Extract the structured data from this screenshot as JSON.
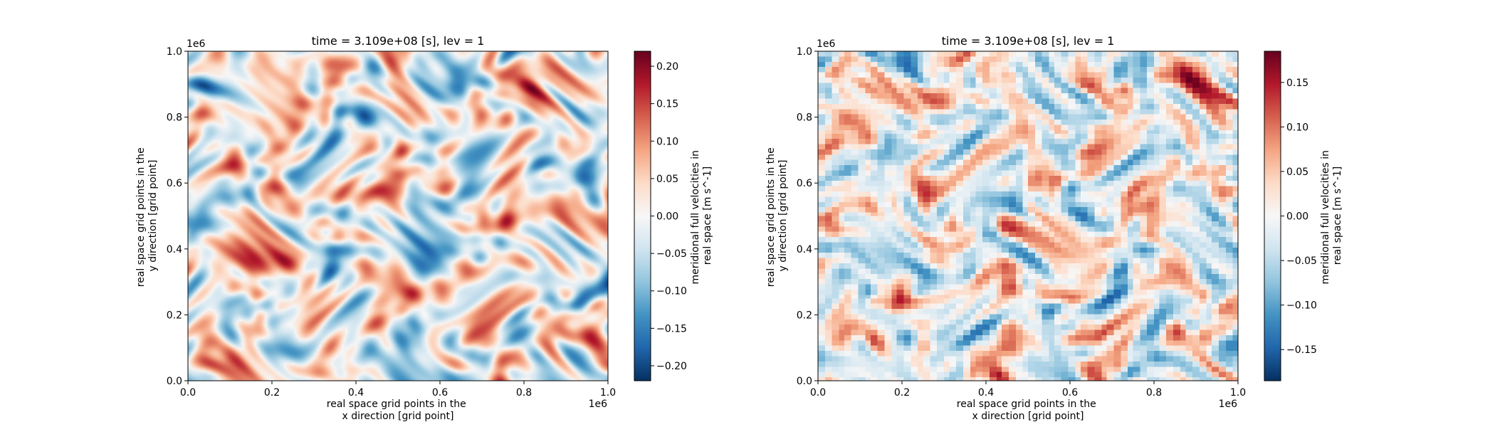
{
  "chart_data": [
    {
      "type": "heatmap",
      "title": "time = 3.109e+08 [s], lev = 1",
      "xlabel": [
        "real space grid points in the",
        "x direction [grid point]"
      ],
      "ylabel": [
        "real space grid points in the",
        "y direction [grid point]"
      ],
      "x_offset": "1e6",
      "y_offset": "1e6",
      "xlim": [
        0.0,
        1.0
      ],
      "ylim": [
        0.0,
        1.0
      ],
      "xticks": [
        "0.0",
        "0.2",
        "0.4",
        "0.6",
        "0.8",
        "1.0"
      ],
      "yticks": [
        "0.0",
        "0.2",
        "0.4",
        "0.6",
        "0.8",
        "1.0"
      ],
      "colormap": "RdBu_r",
      "field_resolution": "fine",
      "colorbar": {
        "label": [
          "meridional full velocities in",
          "real space [m s^-1]"
        ],
        "vmin": -0.22,
        "vmax": 0.22,
        "ticks": [
          -0.2,
          -0.15,
          -0.1,
          -0.05,
          0.0,
          0.05,
          0.1,
          0.15,
          0.2
        ],
        "tick_labels": [
          "−0.20",
          "−0.15",
          "−0.10",
          "−0.05",
          "0.00",
          "0.05",
          "0.10",
          "0.15",
          "0.20"
        ]
      }
    },
    {
      "type": "heatmap",
      "title": "time = 3.109e+08 [s], lev = 1",
      "xlabel": [
        "real space grid points in the",
        "x direction [grid point]"
      ],
      "ylabel": [
        "real space grid points in the",
        "y direction [grid point]"
      ],
      "x_offset": "1e6",
      "y_offset": "1e6",
      "xlim": [
        0.0,
        1.0
      ],
      "ylim": [
        0.0,
        1.0
      ],
      "xticks": [
        "0.0",
        "0.2",
        "0.4",
        "0.6",
        "0.8",
        "1.0"
      ],
      "yticks": [
        "0.0",
        "0.2",
        "0.4",
        "0.6",
        "0.8",
        "1.0"
      ],
      "colormap": "RdBu_r",
      "field_resolution": "coarse",
      "colorbar": {
        "label": [
          "meridional full velocities in",
          "real space [m s^-1]"
        ],
        "vmin": -0.185,
        "vmax": 0.185,
        "ticks": [
          -0.15,
          -0.1,
          -0.05,
          0.0,
          0.05,
          0.1,
          0.15
        ],
        "tick_labels": [
          "−0.15",
          "−0.10",
          "−0.05",
          "0.00",
          "0.05",
          "0.10",
          "0.15"
        ]
      }
    }
  ]
}
